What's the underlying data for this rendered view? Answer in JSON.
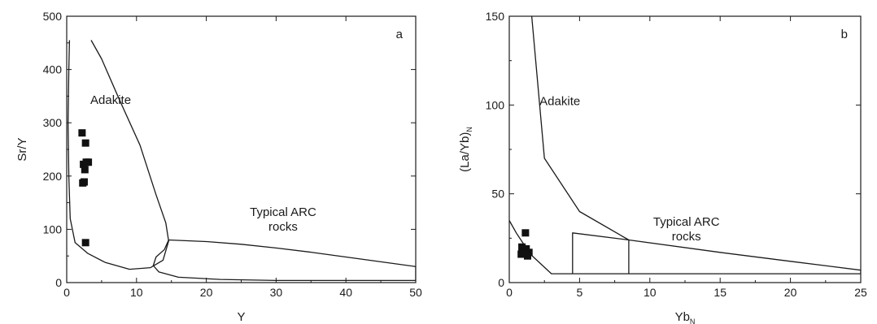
{
  "chart_data": [
    {
      "type": "scatter",
      "panel_label": "a",
      "xlabel": "Y",
      "ylabel": "Sr/Y",
      "xlim": [
        0,
        50
      ],
      "ylim": [
        0,
        500
      ],
      "xticks": [
        "0",
        "10",
        "20",
        "30",
        "40",
        "50"
      ],
      "yticks": [
        "0",
        "100",
        "200",
        "300",
        "400",
        "500"
      ],
      "fields": [
        {
          "label_lines": [
            "Adakite"
          ],
          "label_pos": [
            6.3,
            335
          ],
          "boundary": [
            [
              0.4,
              455
            ],
            [
              0.3,
              400
            ],
            [
              0.2,
              300
            ],
            [
              0.3,
              200
            ],
            [
              0.5,
              120
            ],
            [
              1.2,
              75
            ],
            [
              3,
              55
            ],
            [
              5.5,
              38
            ],
            [
              9,
              25
            ],
            [
              12,
              28
            ],
            [
              13.8,
              42
            ],
            [
              14.6,
              78
            ],
            [
              14.2,
              112
            ],
            [
              12.8,
              165
            ],
            [
              10.5,
              258
            ],
            [
              7.5,
              345
            ],
            [
              5,
              420
            ],
            [
              3.5,
              455
            ]
          ]
        },
        {
          "label_lines": [
            "Typical ARC",
            "rocks"
          ],
          "label_pos": [
            31,
            125
          ],
          "boundary": [
            [
              14.6,
              80
            ],
            [
              20,
              77
            ],
            [
              25,
              72
            ],
            [
              30,
              65
            ],
            [
              35,
              57
            ],
            [
              40,
              48
            ],
            [
              45,
              39
            ],
            [
              50,
              30
            ],
            [
              50,
              4
            ],
            [
              40,
              4
            ],
            [
              30,
              4
            ],
            [
              22,
              6
            ],
            [
              16,
              10
            ],
            [
              13.2,
              20
            ],
            [
              12.4,
              32
            ],
            [
              12.8,
              48
            ],
            [
              14,
              62
            ],
            [
              14.6,
              80
            ]
          ]
        }
      ],
      "series": [
        {
          "marker": "square",
          "x": [
            2.2,
            2.7,
            2.4,
            2.8,
            3.1,
            2.6,
            2.3,
            2.5,
            2.7
          ],
          "y": [
            281,
            262,
            222,
            226,
            226,
            212,
            187,
            189,
            75
          ]
        }
      ]
    },
    {
      "type": "scatter",
      "panel_label": "b",
      "xlabel": "Yb",
      "xlabel_sub": "N",
      "ylabel": "(La/Yb)",
      "ylabel_sub": "N",
      "xlim": [
        0,
        25
      ],
      "ylim": [
        0,
        150
      ],
      "xticks": [
        "0",
        "5",
        "10",
        "15",
        "20",
        "25"
      ],
      "yticks": [
        "0",
        "50",
        "100",
        "150"
      ],
      "fields": [
        {
          "label_lines": [
            "Adakite"
          ],
          "label_pos": [
            3.6,
            100
          ],
          "boundary": [
            [
              1.6,
              150
            ],
            [
              2.5,
              70
            ],
            [
              5,
              40
            ],
            [
              8.5,
              24
            ]
          ]
        },
        {
          "label_lines": [
            "Typical ARC",
            "rocks"
          ],
          "label_pos": [
            12.6,
            32
          ],
          "boundary": [
            [
              0,
              35
            ],
            [
              0.5,
              28
            ],
            [
              1.5,
              16
            ],
            [
              3,
              5
            ],
            [
              25,
              5
            ],
            [
              25,
              7
            ],
            [
              20,
              12
            ],
            [
              15,
              17
            ],
            [
              8.5,
              24
            ],
            [
              4.5,
              28
            ],
            [
              4.5,
              5
            ]
          ]
        },
        {
          "label_lines": [],
          "boundary": [
            [
              8.5,
              24
            ],
            [
              8.5,
              5
            ]
          ]
        }
      ],
      "series": [
        {
          "marker": "square",
          "x": [
            1.15,
            0.9,
            1.2,
            1.0,
            1.4,
            1.1,
            0.85,
            1.3
          ],
          "y": [
            28,
            20,
            19,
            17,
            17,
            16,
            16,
            15
          ]
        }
      ]
    }
  ]
}
